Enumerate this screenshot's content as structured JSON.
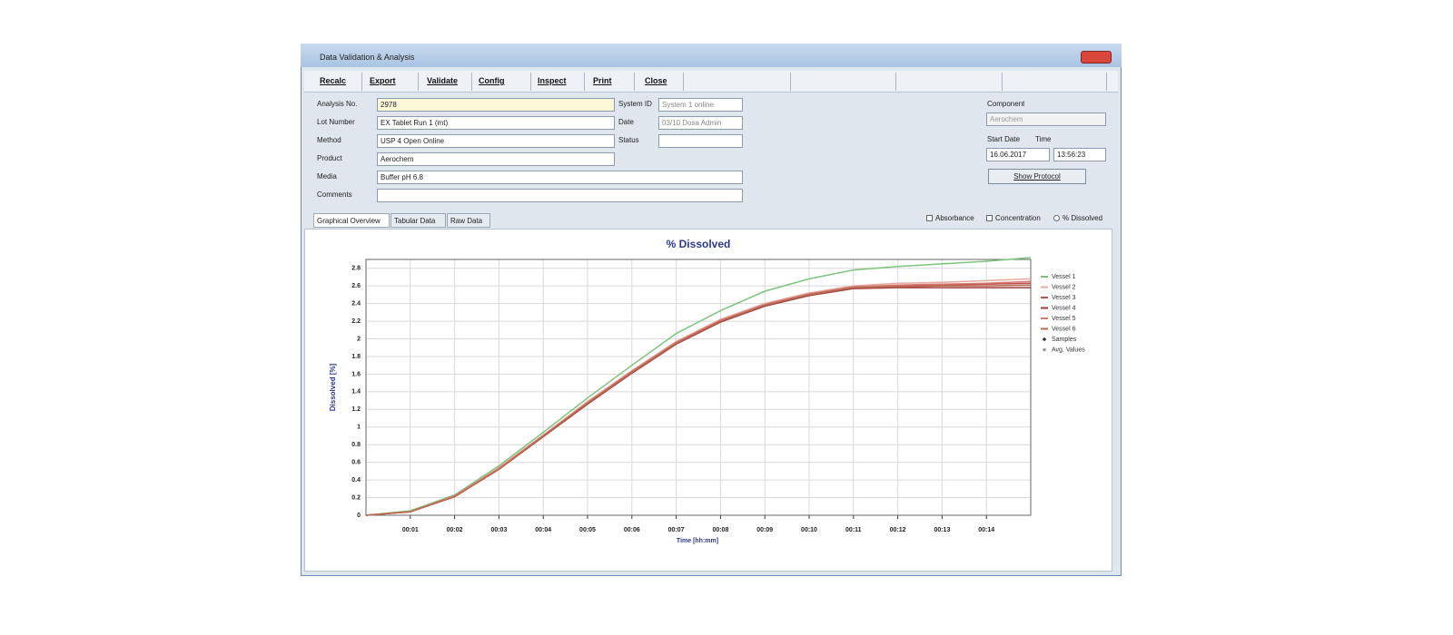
{
  "window": {
    "title": "Data Validation & Analysis",
    "toolbar": [
      "Recalc",
      "Export",
      "Validate",
      "Config",
      "Inspect",
      "Print",
      "Close"
    ],
    "form": {
      "fields": [
        {
          "label": "Analysis No.",
          "value": "2978"
        },
        {
          "label": "Lot Number",
          "value": "EX Tablet Run 1 (mt)"
        },
        {
          "label": "Method",
          "value": "USP 4 Open Online"
        },
        {
          "label": "Product",
          "value": "Aerochem"
        },
        {
          "label": "Media",
          "value": "Buffer pH 6.8"
        },
        {
          "label": "Comments",
          "value": ""
        }
      ],
      "side_fields": [
        {
          "label": "System ID",
          "value": "System 1 online"
        },
        {
          "label": "Date",
          "value": "03/10 Dosa Admin"
        },
        {
          "label": "Status",
          "value": ""
        }
      ],
      "component_label": "Component",
      "component_value": "Aerochem",
      "start_date_label": "Start Date",
      "time_label": "Time",
      "start_date": "16.06.2017",
      "start_time": "13:56:23",
      "protocol_button": "Show Protocol"
    },
    "tabs": [
      "Graphical Overview",
      "Tabular Data",
      "Raw Data"
    ],
    "options": [
      "Absorbance",
      "Concentration",
      "% Dissolved"
    ]
  },
  "chart_data": {
    "type": "line",
    "title": "% Dissolved",
    "x_label": "Time [hh:mm]",
    "y_label": "Dissolved [%]",
    "x": [
      0,
      1,
      2,
      3,
      4,
      5,
      6,
      7,
      8,
      9,
      10,
      11,
      12,
      13,
      14,
      15
    ],
    "series": [
      {
        "name": "Vessel 1",
        "color": "#7cc47c",
        "values": [
          0,
          0.05,
          0.23,
          0.56,
          0.94,
          1.33,
          1.7,
          2.06,
          2.32,
          2.54,
          2.68,
          2.78,
          2.82,
          2.85,
          2.88,
          2.92
        ]
      },
      {
        "name": "Vessel 2",
        "color": "#e6a8a0",
        "values": [
          0,
          0.04,
          0.22,
          0.54,
          0.91,
          1.29,
          1.64,
          1.97,
          2.22,
          2.4,
          2.52,
          2.6,
          2.63,
          2.64,
          2.66,
          2.68
        ]
      },
      {
        "name": "Vessel 3",
        "color": "#c0504d",
        "values": [
          0,
          0.04,
          0.21,
          0.53,
          0.9,
          1.27,
          1.62,
          1.95,
          2.2,
          2.38,
          2.5,
          2.58,
          2.6,
          2.61,
          2.62,
          2.63
        ]
      },
      {
        "name": "Vessel 4",
        "color": "#9e3c3c",
        "values": [
          0,
          0.04,
          0.21,
          0.52,
          0.89,
          1.26,
          1.61,
          1.94,
          2.19,
          2.37,
          2.49,
          2.57,
          2.58,
          2.58,
          2.58,
          2.58
        ]
      },
      {
        "name": "Vessel 5",
        "color": "#d47a70",
        "values": [
          0,
          0.04,
          0.22,
          0.53,
          0.9,
          1.28,
          1.63,
          1.96,
          2.21,
          2.39,
          2.51,
          2.59,
          2.61,
          2.62,
          2.63,
          2.65
        ]
      },
      {
        "name": "Vessel 6",
        "color": "#b86a50",
        "values": [
          0,
          0.04,
          0.21,
          0.52,
          0.9,
          1.27,
          1.62,
          1.95,
          2.2,
          2.38,
          2.5,
          2.58,
          2.59,
          2.6,
          2.6,
          2.61
        ]
      }
    ],
    "extra_legend": [
      "Samples",
      "Avg. Values"
    ],
    "xlim": [
      0,
      15
    ],
    "xticks": [
      {
        "value": 1,
        "label": "00:01"
      },
      {
        "value": 2,
        "label": "00:02"
      },
      {
        "value": 3,
        "label": "00:03"
      },
      {
        "value": 4,
        "label": "00:04"
      },
      {
        "value": 5,
        "label": "00:05"
      },
      {
        "value": 6,
        "label": "00:06"
      },
      {
        "value": 7,
        "label": "00:07"
      },
      {
        "value": 8,
        "label": "00:08"
      },
      {
        "value": 9,
        "label": "00:09"
      },
      {
        "value": 10,
        "label": "00:10"
      },
      {
        "value": 11,
        "label": "00:11"
      },
      {
        "value": 12,
        "label": "00:12"
      },
      {
        "value": 13,
        "label": "00:13"
      },
      {
        "value": 14,
        "label": "00:14"
      }
    ],
    "ylim": [
      0,
      2.9
    ],
    "yticks": [
      0,
      0.2,
      0.4,
      0.6,
      0.8,
      1,
      1.2,
      1.4,
      1.6,
      1.8,
      2,
      2.2,
      2.4,
      2.6,
      2.8
    ],
    "grid": true
  }
}
